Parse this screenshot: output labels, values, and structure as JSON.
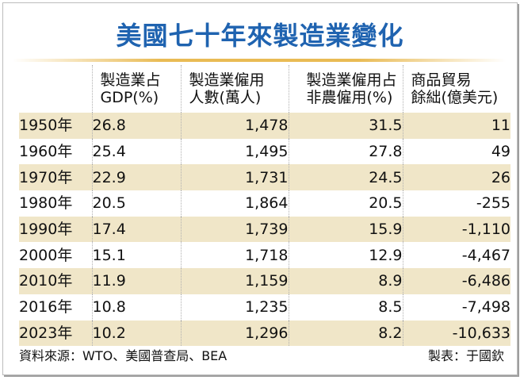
{
  "chart_data": {
    "type": "table",
    "title": "美國七十年來製造業變化",
    "columns": [
      {
        "line1": "",
        "line2": ""
      },
      {
        "line1": "製造業占",
        "line2": "GDP(%)"
      },
      {
        "line1": "製造業僱用",
        "line2": "人數(萬人)"
      },
      {
        "line1": "製造業僱用占",
        "line2": "非農僱用(%)"
      },
      {
        "line1": "商品貿易",
        "line2": "餘絀(億美元)"
      }
    ],
    "rows": [
      [
        "1950年",
        "26.8",
        "1,478",
        "31.5",
        "11"
      ],
      [
        "1960年",
        "25.4",
        "1,495",
        "27.8",
        "49"
      ],
      [
        "1970年",
        "22.9",
        "1,731",
        "24.5",
        "26"
      ],
      [
        "1980年",
        "20.5",
        "1,864",
        "20.5",
        "-255"
      ],
      [
        "1990年",
        "17.4",
        "1,739",
        "15.9",
        "-1,110"
      ],
      [
        "2000年",
        "15.1",
        "1,718",
        "12.9",
        "-4,467"
      ],
      [
        "2010年",
        "11.9",
        "1,159",
        "8.9",
        "-6,486"
      ],
      [
        "2016年",
        "10.8",
        "1,235",
        "8.5",
        "-7,498"
      ],
      [
        "2023年",
        "10.2",
        "1,296",
        "8.2",
        "-10,633"
      ]
    ],
    "source": "資料來源：WTO、美國普查局、BEA",
    "credit": "製表：于國欽",
    "colors": {
      "title": "#1f63b0",
      "accent_rule": "#e9bb54",
      "band": "#f0e6c8"
    }
  }
}
